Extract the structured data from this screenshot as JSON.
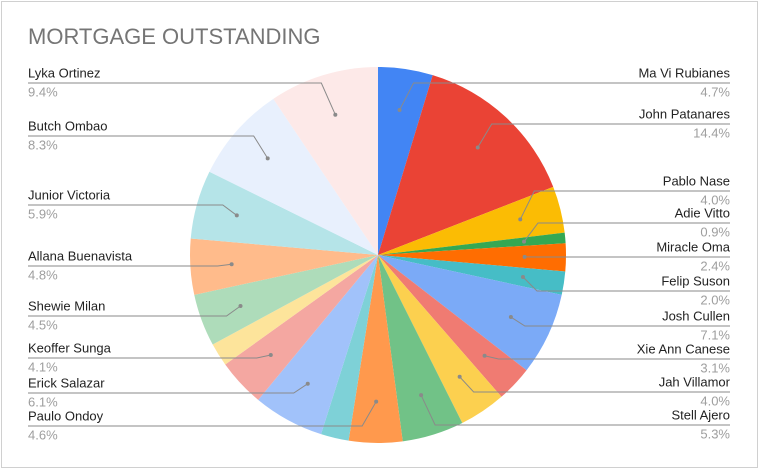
{
  "chart_data": {
    "type": "pie",
    "title": "MORTGAGE OUTSTANDING",
    "categories": [
      "Ma Vi Rubianes",
      "John Patanares",
      "Pablo Nase",
      "Adie Vitto",
      "Miracle Oma",
      "Felip Suson",
      "Josh Cullen",
      "Xie Ann Canese",
      "Jah Villamor",
      "Stell Ajero",
      "Paulo Ondoy",
      null,
      "Erick Salazar",
      "Keoffer Sunga",
      null,
      "Shewie Milan",
      "Allana Buenavista",
      "Junior Victoria",
      "Butch Ombao",
      "Lyka Ortinez"
    ],
    "values": [
      4.7,
      14.4,
      4.0,
      0.9,
      2.4,
      2.0,
      7.1,
      3.1,
      4.0,
      5.3,
      4.6,
      2.4,
      6.1,
      4.1,
      2.0,
      4.5,
      4.8,
      5.9,
      8.3,
      9.4
    ],
    "value_labels": [
      "4.7%",
      "14.4%",
      "4.0%",
      "0.9%",
      "2.4%",
      "2.0%",
      "7.1%",
      "3.1%",
      "4.0%",
      "5.3%",
      "4.6%",
      null,
      "6.1%",
      "4.1%",
      null,
      "4.5%",
      "4.8%",
      "5.9%",
      "8.3%",
      "9.4%"
    ],
    "colors": [
      "#4285f4",
      "#ea4335",
      "#fbbc04",
      "#34a853",
      "#ff6d01",
      "#46bdc6",
      "#7baaf7",
      "#f07b72",
      "#fcd04f",
      "#71c287",
      "#ff994d",
      "#7ed1d7",
      "#a1c2fa",
      "#f4a7a1",
      "#fde49b",
      "#aedcba",
      "#ffbb8b",
      "#b5e4e8",
      "#e8f0fd",
      "#fde9e8"
    ]
  }
}
